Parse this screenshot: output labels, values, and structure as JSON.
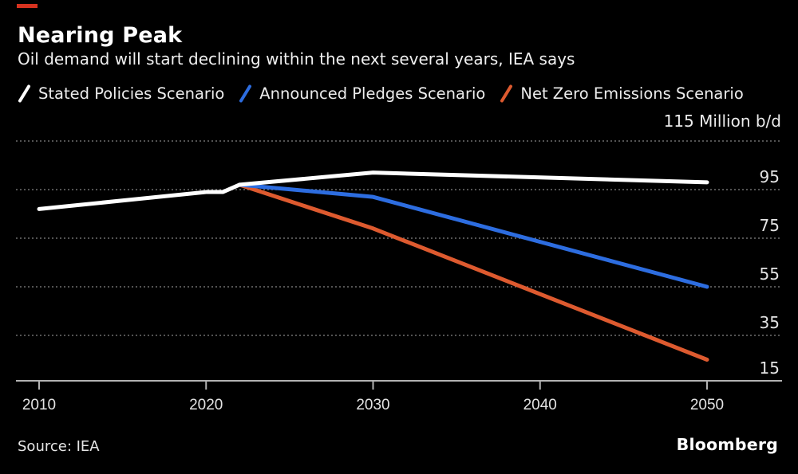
{
  "accent": {
    "color": "#d6321f"
  },
  "header": {
    "title": "Nearing Peak",
    "subtitle": "Oil demand will start declining within the next several years, IEA says"
  },
  "legend": [
    {
      "label": "Stated Policies Scenario",
      "color": "#ffffff"
    },
    {
      "label": "Announced Pledges Scenario",
      "color": "#2d6de0"
    },
    {
      "label": "Net Zero Emissions Scenario",
      "color": "#dd5a2f"
    }
  ],
  "unit_label": "115 Million b/d",
  "chart_data": {
    "type": "line",
    "title": "Nearing Peak",
    "subtitle": "Oil demand will start declining within the next several years, IEA says",
    "xlabel": "",
    "ylabel": "Million b/d",
    "unit": "Million b/d",
    "xlim": [
      2010,
      2050
    ],
    "ylim": [
      15,
      115
    ],
    "x_ticks": [
      2010,
      2020,
      2030,
      2040,
      2050
    ],
    "y_ticks_labeled": [
      95,
      75,
      55,
      35,
      15
    ],
    "y_gridlines": [
      115,
      95,
      75,
      55,
      35
    ],
    "grid": "dotted-horizontal",
    "legend_position": "top",
    "series": [
      {
        "name": "Stated Policies Scenario",
        "color": "#ffffff",
        "points": [
          [
            2010,
            87
          ],
          [
            2020,
            94
          ],
          [
            2021,
            94
          ],
          [
            2022,
            97
          ],
          [
            2030,
            102
          ],
          [
            2050,
            98
          ]
        ]
      },
      {
        "name": "Announced Pledges Scenario",
        "color": "#2d6de0",
        "points": [
          [
            2022,
            97
          ],
          [
            2030,
            92
          ],
          [
            2050,
            55
          ]
        ]
      },
      {
        "name": "Net Zero Emissions Scenario",
        "color": "#dd5a2f",
        "points": [
          [
            2022,
            97
          ],
          [
            2030,
            79
          ],
          [
            2050,
            25
          ]
        ]
      }
    ]
  },
  "footer": {
    "source": "Source: IEA",
    "brand": "Bloomberg"
  }
}
